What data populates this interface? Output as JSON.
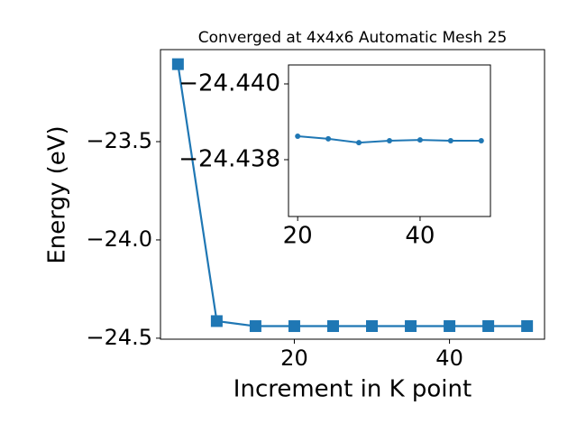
{
  "chart_data": [
    {
      "type": "line",
      "title": "Converged at 4x4x6 Automatic Mesh 25",
      "x_label": "Increment in K point",
      "y_label": "Energy (eV)",
      "x": [
        5,
        10,
        15,
        20,
        25,
        30,
        35,
        40,
        45,
        50
      ],
      "series": [
        {
          "color": "#1f77b4",
          "marker": "square",
          "values": [
            -23.106,
            -24.413,
            -24.4386,
            -24.43862,
            -24.43855,
            -24.43845,
            -24.4385,
            -24.43852,
            -24.4385,
            -24.4385
          ]
        }
      ],
      "xlim": [
        2.75,
        52.25
      ],
      "ylim": [
        -24.505,
        -23.032
      ],
      "xticks": [
        20,
        40
      ],
      "yticks": [
        {
          "value": -23.5,
          "label": "−23.5"
        },
        {
          "value": -24.0,
          "label": "−24.0"
        },
        {
          "value": -24.5,
          "label": "−24.5"
        }
      ]
    },
    {
      "type": "line",
      "x": [
        20,
        25,
        30,
        35,
        40,
        45,
        50
      ],
      "series": [
        {
          "color": "#1f77b4",
          "marker": "circle",
          "values": [
            -24.43862,
            -24.43855,
            -24.43845,
            -24.4385,
            -24.43852,
            -24.4385,
            -24.4385
          ]
        }
      ],
      "xlim": [
        18.5,
        51.5
      ],
      "ylim": [
        -24.4365,
        -24.4405
      ],
      "xticks": [
        20,
        40
      ],
      "yticks": [
        {
          "value": -24.44,
          "label": "−24.440"
        },
        {
          "value": -24.438,
          "label": "−24.438"
        }
      ]
    }
  ]
}
